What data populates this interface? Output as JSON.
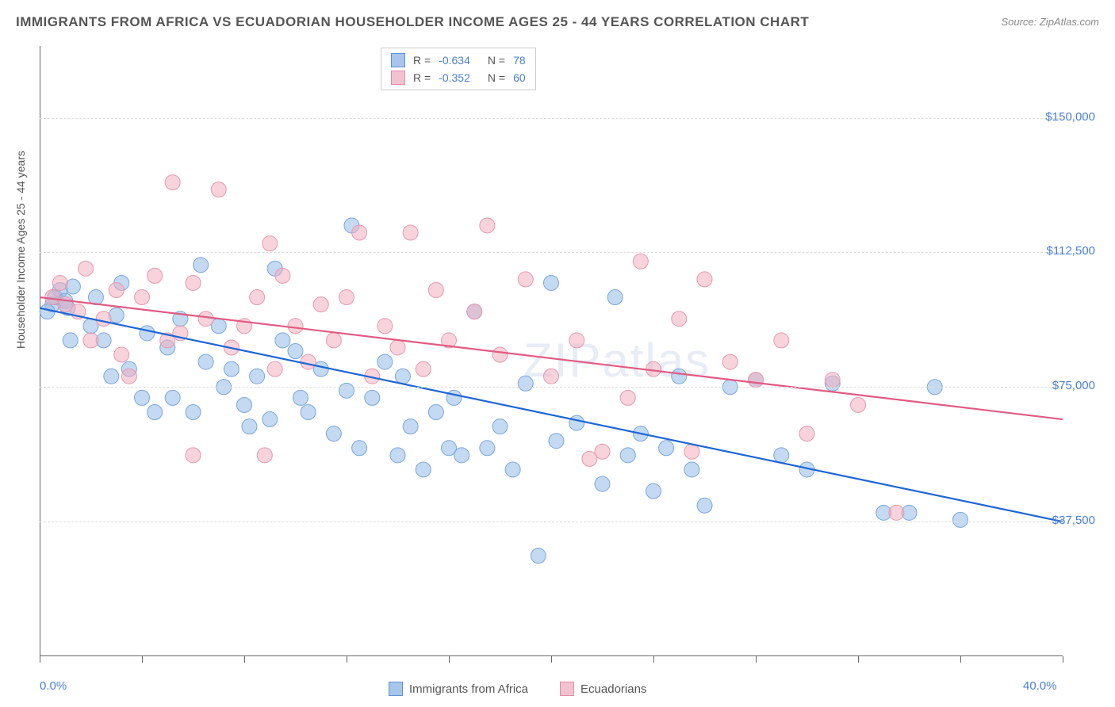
{
  "title": "IMMIGRANTS FROM AFRICA VS ECUADORIAN HOUSEHOLDER INCOME AGES 25 - 44 YEARS CORRELATION CHART",
  "source": "Source: ZipAtlas.com",
  "ylabel": "Householder Income Ages 25 - 44 years",
  "watermark": "ZIPatlas",
  "chart": {
    "type": "scatter",
    "xlim": [
      0,
      40
    ],
    "ylim": [
      0,
      170000
    ],
    "xtick_labels": {
      "0": "0.0%",
      "40": "40.0%"
    },
    "ytick_values": [
      37500,
      75000,
      112500,
      150000
    ],
    "ytick_labels": [
      "$37,500",
      "$75,000",
      "$112,500",
      "$150,000"
    ],
    "background_color": "#ffffff",
    "grid_color": "#dddddd",
    "axis_color": "#666666",
    "xtick_positions": [
      0,
      4,
      8,
      12,
      16,
      20,
      24,
      28,
      32,
      36,
      40
    ],
    "series": [
      {
        "name": "Immigrants from Africa",
        "color_fill": "rgba(148,186,232,0.55)",
        "color_stroke": "#7ba7dc",
        "trend_color": "#1c66d6",
        "swatch_fill": "#a8c6ec",
        "swatch_border": "#5e8fd0",
        "R": "-0.634",
        "N": "78",
        "trend": {
          "x1": 0,
          "y1": 97000,
          "x2": 40,
          "y2": 37500
        },
        "points": [
          [
            0.5,
            98000
          ],
          [
            0.6,
            100000
          ],
          [
            0.8,
            102000
          ],
          [
            1.0,
            99000
          ],
          [
            1.1,
            97000
          ],
          [
            1.2,
            88000
          ],
          [
            1.3,
            103000
          ],
          [
            2.0,
            92000
          ],
          [
            2.2,
            100000
          ],
          [
            2.5,
            88000
          ],
          [
            2.8,
            78000
          ],
          [
            3.0,
            95000
          ],
          [
            3.2,
            104000
          ],
          [
            3.5,
            80000
          ],
          [
            4.0,
            72000
          ],
          [
            4.2,
            90000
          ],
          [
            4.5,
            68000
          ],
          [
            5.0,
            86000
          ],
          [
            5.2,
            72000
          ],
          [
            5.5,
            94000
          ],
          [
            6.0,
            68000
          ],
          [
            6.3,
            109000
          ],
          [
            6.5,
            82000
          ],
          [
            7.0,
            92000
          ],
          [
            7.2,
            75000
          ],
          [
            7.5,
            80000
          ],
          [
            8.0,
            70000
          ],
          [
            8.2,
            64000
          ],
          [
            8.5,
            78000
          ],
          [
            9.0,
            66000
          ],
          [
            9.2,
            108000
          ],
          [
            9.5,
            88000
          ],
          [
            10.0,
            85000
          ],
          [
            10.2,
            72000
          ],
          [
            10.5,
            68000
          ],
          [
            11.0,
            80000
          ],
          [
            11.5,
            62000
          ],
          [
            12.0,
            74000
          ],
          [
            12.2,
            120000
          ],
          [
            12.5,
            58000
          ],
          [
            13.0,
            72000
          ],
          [
            13.5,
            82000
          ],
          [
            14.0,
            56000
          ],
          [
            14.2,
            78000
          ],
          [
            14.5,
            64000
          ],
          [
            15.0,
            52000
          ],
          [
            15.5,
            68000
          ],
          [
            16.0,
            58000
          ],
          [
            16.2,
            72000
          ],
          [
            16.5,
            56000
          ],
          [
            17.0,
            96000
          ],
          [
            17.5,
            58000
          ],
          [
            18.0,
            64000
          ],
          [
            18.5,
            52000
          ],
          [
            19.0,
            76000
          ],
          [
            19.5,
            28000
          ],
          [
            20.0,
            104000
          ],
          [
            20.2,
            60000
          ],
          [
            21.0,
            65000
          ],
          [
            22.0,
            48000
          ],
          [
            22.5,
            100000
          ],
          [
            23.0,
            56000
          ],
          [
            23.5,
            62000
          ],
          [
            24.0,
            46000
          ],
          [
            24.5,
            58000
          ],
          [
            25.0,
            78000
          ],
          [
            25.5,
            52000
          ],
          [
            26.0,
            42000
          ],
          [
            27.0,
            75000
          ],
          [
            28.0,
            77000
          ],
          [
            29.0,
            56000
          ],
          [
            30.0,
            52000
          ],
          [
            31.0,
            76000
          ],
          [
            33.0,
            40000
          ],
          [
            34.0,
            40000
          ],
          [
            35.0,
            75000
          ],
          [
            36.0,
            38000
          ],
          [
            0.3,
            96000
          ]
        ]
      },
      {
        "name": "Ecuadorians",
        "color_fill": "rgba(242,174,192,0.55)",
        "color_stroke": "#e699af",
        "trend_color": "#e15a82",
        "swatch_fill": "#f3c2d0",
        "swatch_border": "#e28ba5",
        "R": "-0.352",
        "N": "60",
        "trend": {
          "x1": 0,
          "y1": 100000,
          "x2": 40,
          "y2": 66000
        },
        "points": [
          [
            0.5,
            100000
          ],
          [
            0.8,
            104000
          ],
          [
            1.0,
            98000
          ],
          [
            1.5,
            96000
          ],
          [
            1.8,
            108000
          ],
          [
            2.0,
            88000
          ],
          [
            2.5,
            94000
          ],
          [
            3.0,
            102000
          ],
          [
            3.2,
            84000
          ],
          [
            3.5,
            78000
          ],
          [
            4.0,
            100000
          ],
          [
            4.5,
            106000
          ],
          [
            5.0,
            88000
          ],
          [
            5.2,
            132000
          ],
          [
            5.5,
            90000
          ],
          [
            6.0,
            104000
          ],
          [
            6.5,
            94000
          ],
          [
            7.0,
            130000
          ],
          [
            7.5,
            86000
          ],
          [
            8.0,
            92000
          ],
          [
            8.5,
            100000
          ],
          [
            8.8,
            56000
          ],
          [
            9.0,
            115000
          ],
          [
            9.2,
            80000
          ],
          [
            9.5,
            106000
          ],
          [
            10.0,
            92000
          ],
          [
            10.5,
            82000
          ],
          [
            11.0,
            98000
          ],
          [
            11.5,
            88000
          ],
          [
            12.0,
            100000
          ],
          [
            12.5,
            118000
          ],
          [
            13.0,
            78000
          ],
          [
            13.5,
            92000
          ],
          [
            14.0,
            86000
          ],
          [
            14.5,
            118000
          ],
          [
            15.0,
            80000
          ],
          [
            15.5,
            102000
          ],
          [
            16.0,
            88000
          ],
          [
            17.0,
            96000
          ],
          [
            17.5,
            120000
          ],
          [
            18.0,
            84000
          ],
          [
            19.0,
            105000
          ],
          [
            20.0,
            78000
          ],
          [
            21.0,
            88000
          ],
          [
            21.5,
            55000
          ],
          [
            22.0,
            57000
          ],
          [
            23.0,
            72000
          ],
          [
            23.5,
            110000
          ],
          [
            24.0,
            80000
          ],
          [
            25.0,
            94000
          ],
          [
            25.5,
            57000
          ],
          [
            26.0,
            105000
          ],
          [
            27.0,
            82000
          ],
          [
            28.0,
            77000
          ],
          [
            29.0,
            88000
          ],
          [
            30.0,
            62000
          ],
          [
            31.0,
            77000
          ],
          [
            32.0,
            70000
          ],
          [
            33.5,
            40000
          ],
          [
            6.0,
            56000
          ]
        ]
      }
    ],
    "marker_radius": 9.5,
    "line_width": 2.2
  },
  "legend_bottom": {
    "items": [
      {
        "label": "Immigrants from Africa",
        "series": 0
      },
      {
        "label": "Ecuadorians",
        "series": 1
      }
    ]
  }
}
